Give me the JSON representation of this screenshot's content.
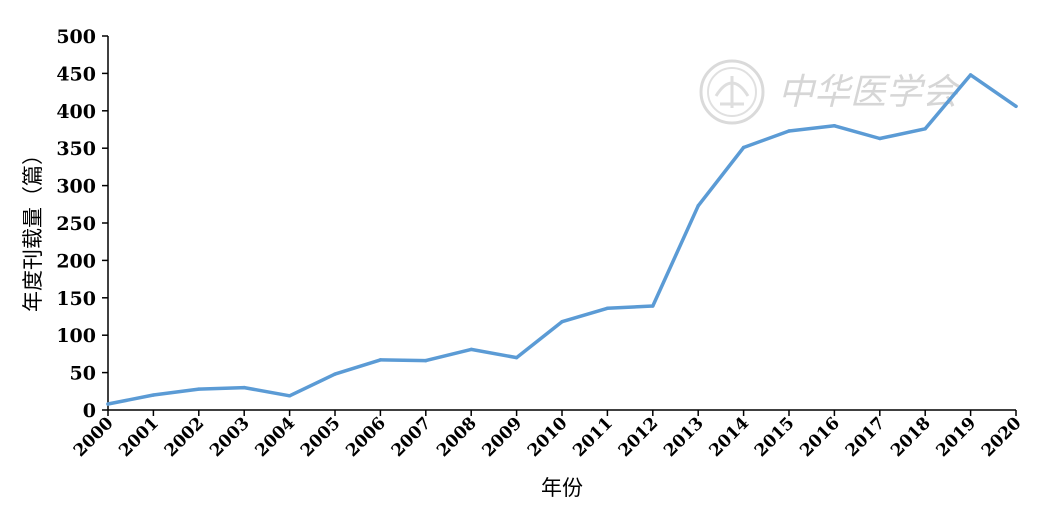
{
  "chart_data": {
    "type": "line",
    "title": "",
    "xlabel": "年份",
    "ylabel": "年度刊载量（篇）",
    "ylim": [
      0,
      500
    ],
    "yticks": [
      0,
      50,
      100,
      150,
      200,
      250,
      300,
      350,
      400,
      450,
      500
    ],
    "categories": [
      "2000",
      "2001",
      "2002",
      "2003",
      "2004",
      "2005",
      "2006",
      "2007",
      "2008",
      "2009",
      "2010",
      "2011",
      "2012",
      "2013",
      "2014",
      "2015",
      "2016",
      "2017",
      "2018",
      "2019",
      "2020"
    ],
    "series": [
      {
        "values": [
          8,
          20,
          28,
          30,
          19,
          48,
          67,
          66,
          81,
          70,
          118,
          136,
          139,
          273,
          351,
          373,
          380,
          363,
          376,
          448,
          406
        ]
      }
    ],
    "line_color": "#5b9bd5",
    "grid": false,
    "legend": "none"
  },
  "watermark": {
    "text": "中华医学会"
  }
}
